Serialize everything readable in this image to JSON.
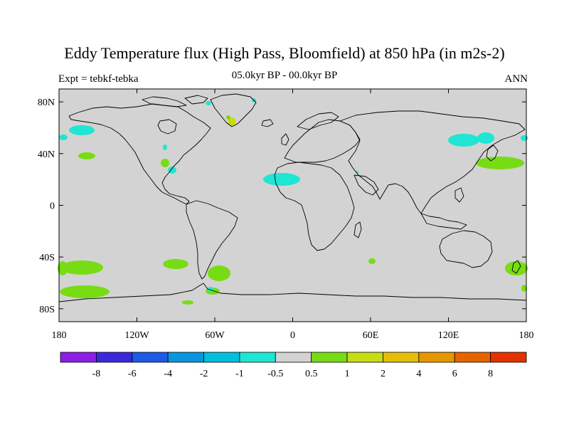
{
  "title": "Eddy Temperature flux (High Pass, Bloomfield) at 850 hPa (in m2s-2)",
  "subtitle_left": "Expt = tebkf-tebka",
  "subtitle_center": "05.0kyr BP - 00.0kyr BP",
  "subtitle_right": "ANN",
  "map": {
    "lon_range": [
      -180,
      180
    ],
    "lat_range": [
      -90,
      90
    ],
    "lat_ticks": [
      {
        "value": 80,
        "label": "80N"
      },
      {
        "value": 40,
        "label": "40N"
      },
      {
        "value": 0,
        "label": "0"
      },
      {
        "value": -40,
        "label": "40S"
      },
      {
        "value": -80,
        "label": "80S"
      }
    ],
    "lon_ticks": [
      {
        "value": -180,
        "label": "180"
      },
      {
        "value": -120,
        "label": "120W"
      },
      {
        "value": -60,
        "label": "60W"
      },
      {
        "value": 0,
        "label": "0"
      },
      {
        "value": 60,
        "label": "60E"
      },
      {
        "value": 120,
        "label": "120E"
      },
      {
        "value": 180,
        "label": "180"
      }
    ],
    "background_color": "#d3d3d3"
  },
  "colorbar": {
    "colors": [
      "#8c1ee6",
      "#3c28dc",
      "#1e5ae6",
      "#0a96dc",
      "#00bedc",
      "#1ee6d2",
      "#d3d3d3",
      "#78dc14",
      "#c8dc14",
      "#e6be0a",
      "#e69600",
      "#e66400",
      "#e63200"
    ],
    "labels": [
      "-8",
      "-6",
      "-4",
      "-2",
      "-1",
      "-0.5",
      "0.5",
      "1",
      "2",
      "4",
      "6",
      "8"
    ]
  }
}
